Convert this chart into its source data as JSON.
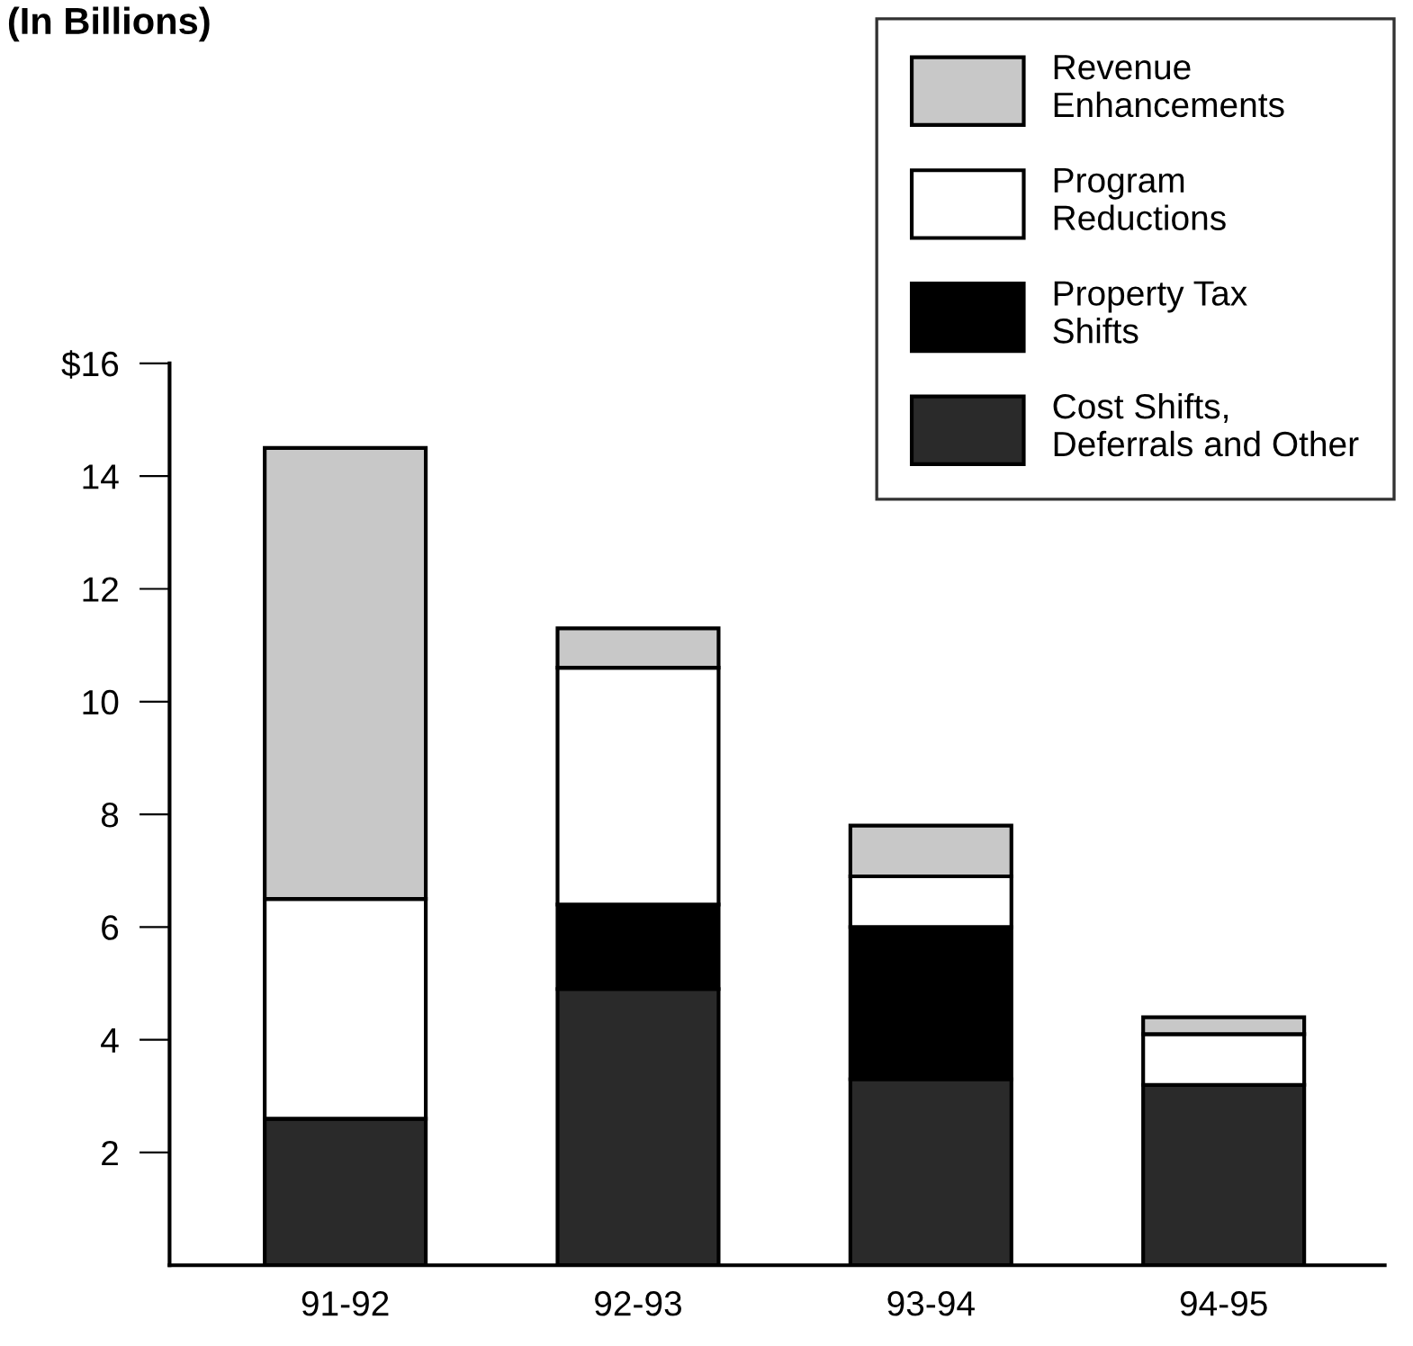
{
  "chart_data": {
    "type": "bar",
    "title": "(In Billions)",
    "stacked": true,
    "categories": [
      "91-92",
      "92-93",
      "93-94",
      "94-95"
    ],
    "series": [
      {
        "name": "Cost Shifts,\nDeferrals and Other",
        "color": "#2a2a2a",
        "values": [
          2.6,
          4.9,
          3.3,
          3.2
        ]
      },
      {
        "name": "Property Tax\nShifts",
        "color": "#000000",
        "values": [
          0,
          1.5,
          2.7,
          0
        ]
      },
      {
        "name": "Program\nReductions",
        "color": "#ffffff",
        "values": [
          3.9,
          4.2,
          0.9,
          0.9
        ]
      },
      {
        "name": "Revenue\nEnhancements",
        "color": "#c8c8c8",
        "values": [
          8.0,
          0.7,
          0.9,
          0.3
        ]
      }
    ],
    "ylim": [
      0,
      16
    ],
    "yticks": [
      2,
      4,
      6,
      8,
      10,
      12,
      14,
      {
        "value": 16,
        "label": "$16"
      }
    ],
    "grid": false,
    "legend": "top right"
  }
}
